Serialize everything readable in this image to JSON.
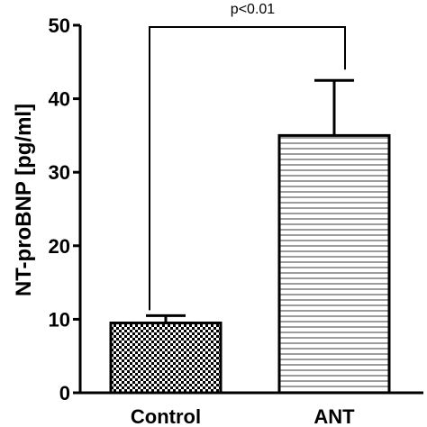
{
  "chart_data": {
    "type": "bar",
    "title": "",
    "xlabel": "",
    "ylabel": "NT-proBNP [pg/ml]",
    "ylim": [
      0,
      50
    ],
    "yticks": [
      0,
      10,
      20,
      30,
      40,
      50
    ],
    "grid": false,
    "categories": [
      "Control",
      "ANT"
    ],
    "values": [
      9.5,
      35.0
    ],
    "error_upper": [
      10.5,
      42.5
    ],
    "patterns": [
      "checkered",
      "horizontal-lines"
    ],
    "annotation": {
      "text": "p<0.01",
      "between": [
        "Control",
        "ANT"
      ]
    }
  }
}
